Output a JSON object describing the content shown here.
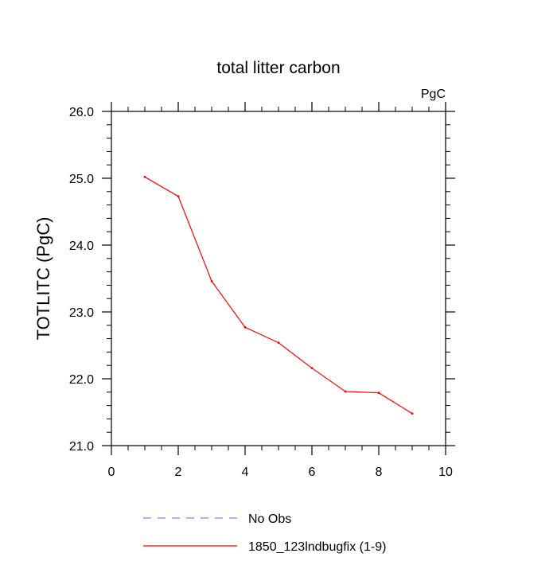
{
  "chart_data": {
    "type": "line",
    "title": "total litter carbon",
    "units_label": "PgC",
    "xlabel": "",
    "ylabel": "TOTLITC  (PgC)",
    "xlim": [
      0,
      10
    ],
    "ylim": [
      21.0,
      26.0
    ],
    "x_ticks": [
      0,
      2,
      4,
      6,
      8,
      10
    ],
    "x_tick_labels": [
      "0",
      "2",
      "4",
      "6",
      "8",
      "10"
    ],
    "y_ticks": [
      21.0,
      22.0,
      23.0,
      24.0,
      25.0,
      26.0
    ],
    "y_tick_labels": [
      "21.0",
      "22.0",
      "23.0",
      "24.0",
      "25.0",
      "26.0"
    ],
    "grid": false,
    "legend_position": "bottom",
    "series": [
      {
        "name": "No Obs",
        "color": "#8080ff",
        "dash": "dashed",
        "x": [],
        "y": []
      },
      {
        "name": "1850_123lndbugfix (1-9)",
        "color": "#ff0000",
        "dash": "solid",
        "x": [
          1,
          2,
          3,
          4,
          5,
          6,
          7,
          8,
          9
        ],
        "y": [
          25.02,
          24.73,
          23.46,
          22.77,
          22.54,
          22.16,
          21.81,
          21.79,
          21.48
        ]
      }
    ]
  }
}
